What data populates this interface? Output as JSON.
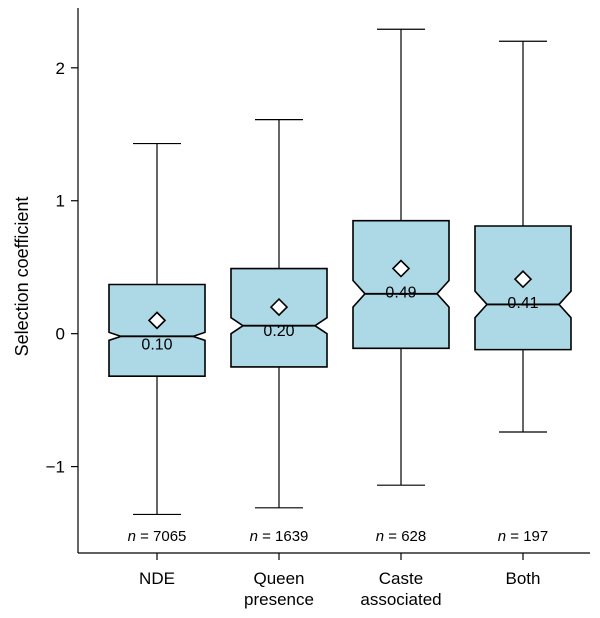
{
  "chart_data": {
    "type": "boxplot",
    "ylabel": "Selection coefficient",
    "ylim": [
      -1.65,
      2.45
    ],
    "yticks": [
      -1,
      0,
      1,
      2
    ],
    "ytick_labels": [
      "−1",
      "0",
      "1",
      "2"
    ],
    "colors": {
      "box_fill": "#add8e6",
      "stroke": "#000000",
      "mean_fill": "#ffffff"
    },
    "groups": [
      {
        "label": [
          "NDE"
        ],
        "whisker_low": -1.36,
        "q1": -0.32,
        "median": -0.02,
        "q3": 0.37,
        "whisker_high": 1.43,
        "notch_low": -0.05,
        "notch_high": 0.01,
        "mean": 0.1,
        "mean_label": "0.10",
        "n_prefix": "n",
        "n_value": " = 7065"
      },
      {
        "label": [
          "Queen",
          "presence"
        ],
        "whisker_low": -1.31,
        "q1": -0.25,
        "median": 0.06,
        "q3": 0.49,
        "whisker_high": 1.61,
        "notch_low": 0.0,
        "notch_high": 0.12,
        "mean": 0.2,
        "mean_label": "0.20",
        "n_prefix": "n",
        "n_value": " = 1639"
      },
      {
        "label": [
          "Caste",
          "associated"
        ],
        "whisker_low": -1.14,
        "q1": -0.11,
        "median": 0.3,
        "q3": 0.85,
        "whisker_high": 2.29,
        "notch_low": 0.2,
        "notch_high": 0.4,
        "mean": 0.49,
        "mean_label": "0.49",
        "n_prefix": "n",
        "n_value": " = 628"
      },
      {
        "label": [
          "Both"
        ],
        "whisker_low": -0.74,
        "q1": -0.12,
        "median": 0.22,
        "q3": 0.81,
        "whisker_high": 2.2,
        "notch_low": 0.12,
        "notch_high": 0.32,
        "mean": 0.41,
        "mean_label": "0.41",
        "n_prefix": "n",
        "n_value": " = 197"
      }
    ]
  }
}
